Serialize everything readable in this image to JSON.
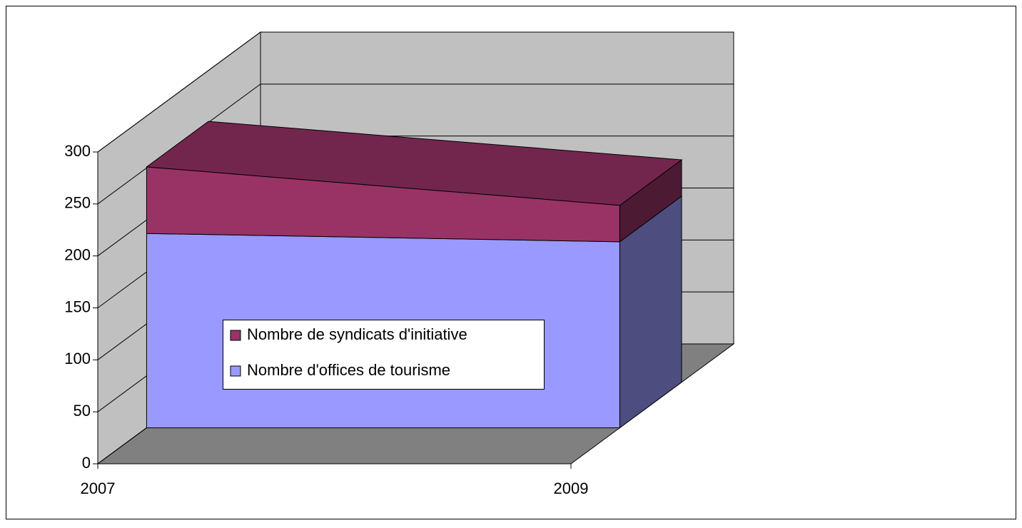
{
  "chart_data": {
    "type": "area3d",
    "categories": [
      "2007",
      "2009"
    ],
    "series": [
      {
        "name": "Nombre d'offices de tourisme",
        "color": "#9999ff",
        "values": [
          187,
          179
        ]
      },
      {
        "name": "Nombre de syndicats d'initiative",
        "color": "#993366",
        "values": [
          64,
          35
        ]
      }
    ],
    "ylim": [
      0,
      300
    ],
    "yticks": [
      0,
      50,
      100,
      150,
      200,
      250,
      300
    ],
    "grid": true,
    "stacked": true
  }
}
